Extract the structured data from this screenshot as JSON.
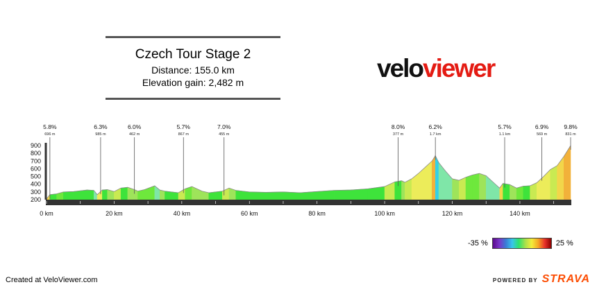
{
  "header": {
    "title": "Czech Tour Stage 2",
    "distance": "Distance: 155.0 km",
    "elevation_gain": "Elevation gain: 2,482 m"
  },
  "logo": {
    "part1": "velo",
    "part2": "viewer"
  },
  "footer": {
    "created": "Created at VeloViewer.com",
    "powered_by": "POWERED BY",
    "brand": "STRAVA"
  },
  "legend": {
    "min_label": "-35 %",
    "max_label": "25 %"
  },
  "colors": {
    "brand_red": "#e41b13",
    "strava_orange": "#fc4c02",
    "axis_bar": "#333333"
  },
  "chart_data": {
    "type": "area",
    "title": "Czech Tour Stage 2",
    "xlabel": "",
    "ylabel": "",
    "xlim": [
      0,
      155
    ],
    "ylim": [
      0,
      1000
    ],
    "x_ticks": [
      0,
      20,
      40,
      60,
      80,
      100,
      120,
      140
    ],
    "x_tick_labels": [
      "0 km",
      "20 km",
      "40 km",
      "60 km",
      "80 km",
      "100 km",
      "120 km",
      "140 km"
    ],
    "y_ticks": [
      200,
      300,
      400,
      500,
      600,
      700,
      800,
      900
    ],
    "y_tick_labels": [
      "200",
      "300",
      "400",
      "500",
      "600",
      "700",
      "800",
      "900"
    ],
    "profile": [
      {
        "x": 0,
        "y": 210
      },
      {
        "x": 1,
        "y": 265
      },
      {
        "x": 3,
        "y": 275
      },
      {
        "x": 5,
        "y": 300
      },
      {
        "x": 8,
        "y": 305
      },
      {
        "x": 12,
        "y": 325
      },
      {
        "x": 14,
        "y": 320
      },
      {
        "x": 15,
        "y": 265
      },
      {
        "x": 16.5,
        "y": 325
      },
      {
        "x": 18,
        "y": 330
      },
      {
        "x": 20,
        "y": 305
      },
      {
        "x": 22,
        "y": 350
      },
      {
        "x": 24,
        "y": 360
      },
      {
        "x": 26,
        "y": 330
      },
      {
        "x": 27,
        "y": 310
      },
      {
        "x": 29,
        "y": 330
      },
      {
        "x": 32,
        "y": 380
      },
      {
        "x": 33.5,
        "y": 325
      },
      {
        "x": 35,
        "y": 310
      },
      {
        "x": 37,
        "y": 300
      },
      {
        "x": 39,
        "y": 290
      },
      {
        "x": 41,
        "y": 340
      },
      {
        "x": 43,
        "y": 370
      },
      {
        "x": 46,
        "y": 310
      },
      {
        "x": 48,
        "y": 290
      },
      {
        "x": 50,
        "y": 300
      },
      {
        "x": 52,
        "y": 310
      },
      {
        "x": 54,
        "y": 350
      },
      {
        "x": 56,
        "y": 320
      },
      {
        "x": 60,
        "y": 300
      },
      {
        "x": 65,
        "y": 295
      },
      {
        "x": 70,
        "y": 300
      },
      {
        "x": 75,
        "y": 290
      },
      {
        "x": 80,
        "y": 305
      },
      {
        "x": 85,
        "y": 320
      },
      {
        "x": 90,
        "y": 325
      },
      {
        "x": 95,
        "y": 340
      },
      {
        "x": 100,
        "y": 370
      },
      {
        "x": 103,
        "y": 430
      },
      {
        "x": 105,
        "y": 445
      },
      {
        "x": 106,
        "y": 425
      },
      {
        "x": 108,
        "y": 470
      },
      {
        "x": 110,
        "y": 540
      },
      {
        "x": 112,
        "y": 620
      },
      {
        "x": 114,
        "y": 700
      },
      {
        "x": 115,
        "y": 770
      },
      {
        "x": 116,
        "y": 680
      },
      {
        "x": 118,
        "y": 570
      },
      {
        "x": 120,
        "y": 470
      },
      {
        "x": 122,
        "y": 450
      },
      {
        "x": 124,
        "y": 490
      },
      {
        "x": 126,
        "y": 520
      },
      {
        "x": 128,
        "y": 540
      },
      {
        "x": 130,
        "y": 510
      },
      {
        "x": 132,
        "y": 430
      },
      {
        "x": 134,
        "y": 350
      },
      {
        "x": 135,
        "y": 410
      },
      {
        "x": 137,
        "y": 395
      },
      {
        "x": 139,
        "y": 350
      },
      {
        "x": 141,
        "y": 375
      },
      {
        "x": 143,
        "y": 380
      },
      {
        "x": 145,
        "y": 420
      },
      {
        "x": 147,
        "y": 500
      },
      {
        "x": 149,
        "y": 590
      },
      {
        "x": 151,
        "y": 640
      },
      {
        "x": 153,
        "y": 760
      },
      {
        "x": 155,
        "y": 900
      }
    ],
    "climbs": [
      {
        "x": 1,
        "grade": "5.8%",
        "sub": "696 m"
      },
      {
        "x": 16,
        "grade": "6.3%",
        "sub": "985 m"
      },
      {
        "x": 26,
        "grade": "6.0%",
        "sub": "462 m"
      },
      {
        "x": 40.5,
        "grade": "5.7%",
        "sub": "867 m"
      },
      {
        "x": 52.5,
        "grade": "7.0%",
        "sub": "455 m"
      },
      {
        "x": 104,
        "grade": "8.0%",
        "sub": "377 m"
      },
      {
        "x": 115,
        "grade": "6.2%",
        "sub": "1.7 km"
      },
      {
        "x": 135.5,
        "grade": "5.7%",
        "sub": "1.1 km"
      },
      {
        "x": 146.5,
        "grade": "6.9%",
        "sub": "569 m"
      },
      {
        "x": 155,
        "grade": "9.8%",
        "sub": "831 m"
      }
    ]
  }
}
